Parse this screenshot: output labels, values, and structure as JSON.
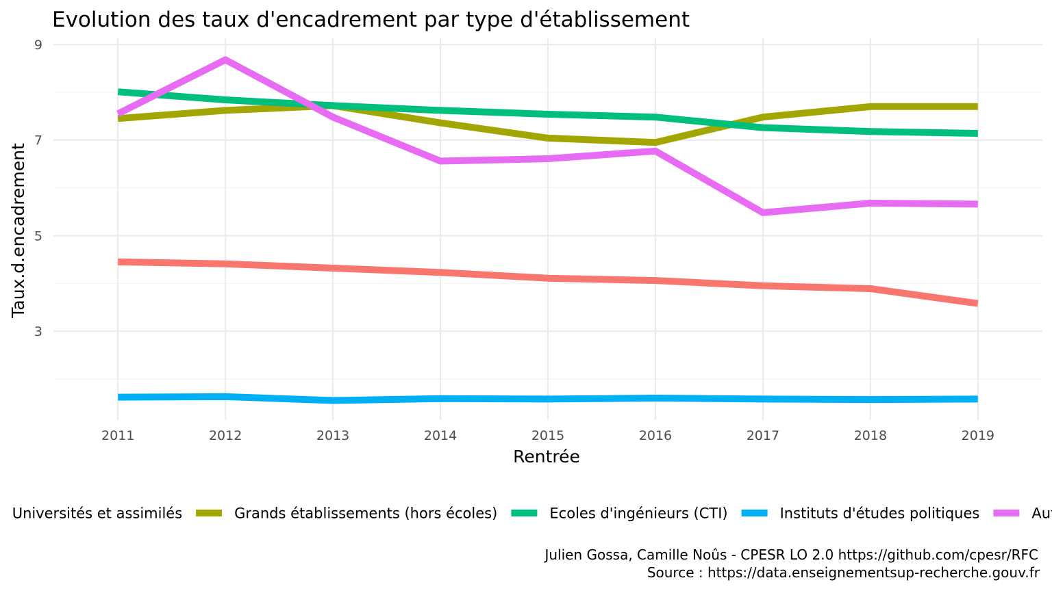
{
  "chart_data": {
    "type": "line",
    "title": "Evolution des taux d'encadrement par type d'établissement",
    "xlabel": "Rentrée",
    "ylabel": "Taux.d.encadrement",
    "x": [
      2011,
      2012,
      2013,
      2014,
      2015,
      2016,
      2017,
      2018,
      2019
    ],
    "x_ticks": [
      "2011",
      "2012",
      "2013",
      "2014",
      "2015",
      "2016",
      "2017",
      "2018",
      "2019"
    ],
    "y_ticks": [
      "3",
      "5",
      "7",
      "9"
    ],
    "ylim": [
      1.4,
      9.0
    ],
    "grid": true,
    "legend_position": "bottom",
    "series": [
      {
        "name": "Universités et assimilés",
        "color": "#F8766D",
        "values": [
          4.45,
          4.41,
          4.32,
          4.23,
          4.11,
          4.06,
          3.95,
          3.89,
          3.58
        ]
      },
      {
        "name": "Grands établissements (hors écoles)",
        "color": "#A3A500",
        "values": [
          7.45,
          7.62,
          7.72,
          7.36,
          7.04,
          6.95,
          7.48,
          7.7,
          7.7
        ]
      },
      {
        "name": "Ecoles d'ingénieurs (CTI)",
        "color": "#00BF7D",
        "values": [
          8.01,
          7.84,
          7.72,
          7.62,
          7.54,
          7.48,
          7.26,
          7.18,
          7.14
        ]
      },
      {
        "name": "Instituts d'études politiques",
        "color": "#00B0F6",
        "values": [
          1.62,
          1.63,
          1.55,
          1.59,
          1.58,
          1.6,
          1.58,
          1.57,
          1.58
        ]
      },
      {
        "name": "Autres",
        "color": "#E76BF3",
        "values": [
          7.55,
          8.68,
          7.48,
          6.56,
          6.61,
          6.77,
          5.48,
          5.68,
          5.66
        ]
      }
    ],
    "caption": [
      "Julien Gossa, Camille Noûs - CPESR LO 2.0 https://github.com/cpesr/RFC",
      "Source : https://data.enseignementsup-recherche.gouv.fr"
    ]
  }
}
